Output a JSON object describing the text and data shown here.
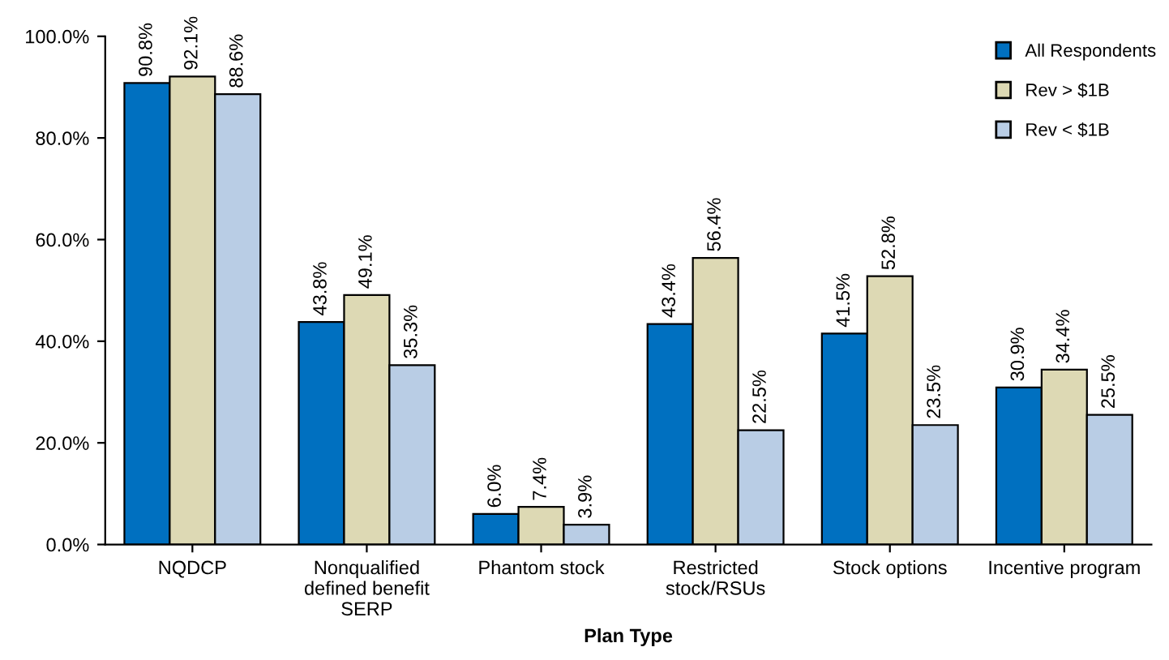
{
  "chart_data": {
    "type": "bar",
    "xlabel": "Plan Type",
    "categories": [
      "NQDCP",
      "Nonqualified\ndefined benefit\nSERP",
      "Phantom stock",
      "Restricted\nstock/RSUs",
      "Stock options",
      "Incentive program"
    ],
    "series": [
      {
        "name": "All Respondents",
        "color": "#0070c0",
        "values": [
          90.8,
          43.8,
          6.0,
          43.4,
          41.5,
          30.9
        ],
        "value_labels": [
          "90.8%",
          "43.8%",
          "6.0%",
          "43.4%",
          "41.5%",
          "30.9%"
        ]
      },
      {
        "name": "Rev > $1B",
        "color": "#ddd9b4",
        "values": [
          92.1,
          49.1,
          7.4,
          56.4,
          52.8,
          34.4
        ],
        "value_labels": [
          "92.1%",
          "49.1%",
          "7.4%",
          "56.4%",
          "52.8%",
          "34.4%"
        ]
      },
      {
        "name": "Rev < $1B",
        "color": "#b9cde5",
        "values": [
          88.6,
          35.3,
          3.9,
          22.5,
          23.5,
          25.5
        ],
        "value_labels": [
          "88.6%",
          "35.3%",
          "3.9%",
          "22.5%",
          "23.5%",
          "25.5%"
        ]
      }
    ],
    "ylim": [
      0,
      100
    ],
    "yticks": [
      {
        "value": 0,
        "label": "0.0%"
      },
      {
        "value": 20,
        "label": "20.0%"
      },
      {
        "value": 40,
        "label": "40.0%"
      },
      {
        "value": 60,
        "label": "60.0%"
      },
      {
        "value": 80,
        "label": "80.0%"
      },
      {
        "value": 100,
        "label": "100.0%"
      }
    ],
    "grid": false,
    "legend": "top right"
  }
}
